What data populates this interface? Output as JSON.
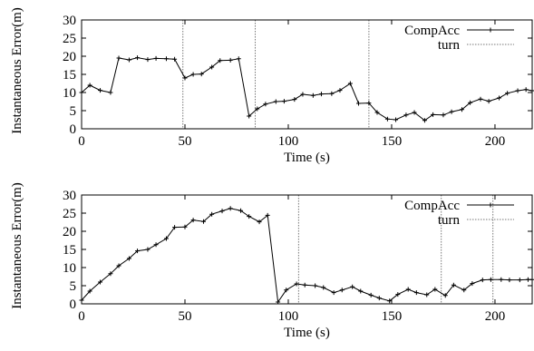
{
  "chart_data": [
    {
      "type": "line",
      "xlabel": "Time (s)",
      "ylabel": "Instantaneous Error(m)",
      "xlim": [
        0,
        218
      ],
      "ylim": [
        0,
        30
      ],
      "xticks": [
        0,
        50,
        100,
        150,
        200
      ],
      "yticks": [
        0,
        5,
        10,
        15,
        20,
        25,
        30
      ],
      "grid": false,
      "legend_position": "top-right",
      "legend": [
        "CompAcc",
        "turn"
      ],
      "series": [
        {
          "name": "CompAcc",
          "x": [
            0,
            4,
            9,
            14,
            18,
            23,
            27,
            32,
            36,
            41,
            45,
            50,
            54,
            58,
            63,
            67,
            72,
            76,
            81,
            85,
            89,
            94,
            98,
            103,
            107,
            112,
            116,
            121,
            125,
            130,
            134,
            139,
            143,
            148,
            152,
            157,
            161,
            166,
            170,
            175,
            179,
            184,
            188,
            193,
            197,
            202,
            206,
            211,
            215,
            218
          ],
          "y": [
            10,
            12,
            10.6,
            10,
            19.5,
            19,
            19.6,
            19.1,
            19.4,
            19.3,
            19.2,
            14,
            15,
            15.1,
            17,
            18.8,
            18.9,
            19.3,
            3.5,
            5.5,
            6.8,
            7.5,
            7.6,
            8.1,
            9.5,
            9.2,
            9.6,
            9.7,
            10.6,
            12.5,
            7,
            7.1,
            4.5,
            2.7,
            2.5,
            3.8,
            4.5,
            2.3,
            3.9,
            3.8,
            4.7,
            5.3,
            7.2,
            8.2,
            7.6,
            8.5,
            9.8,
            10.5,
            10.8,
            10.5
          ]
        },
        {
          "name": "turn",
          "style": "dotted-vertical",
          "x": [
            49,
            84,
            139
          ]
        }
      ]
    },
    {
      "type": "line",
      "xlabel": "Time (s)",
      "ylabel": "Instantaneous Error(m)",
      "xlim": [
        0,
        218
      ],
      "ylim": [
        0,
        30
      ],
      "xticks": [
        0,
        50,
        100,
        150,
        200
      ],
      "yticks": [
        0,
        5,
        10,
        15,
        20,
        25,
        30
      ],
      "grid": false,
      "legend_position": "top-right",
      "legend": [
        "CompAcc",
        "turn"
      ],
      "series": [
        {
          "name": "CompAcc",
          "x": [
            0,
            4,
            9,
            14,
            18,
            23,
            27,
            32,
            36,
            41,
            45,
            50,
            54,
            59,
            63,
            68,
            72,
            77,
            81,
            86,
            90,
            95,
            99,
            104,
            108,
            113,
            117,
            122,
            126,
            131,
            135,
            140,
            144,
            149,
            153,
            158,
            162,
            167,
            171,
            176,
            180,
            185,
            189,
            194,
            198,
            203,
            207,
            212,
            216,
            218
          ],
          "y": [
            1,
            3.5,
            6,
            8.3,
            10.5,
            12.5,
            14.6,
            15,
            16.3,
            18,
            21.1,
            21.2,
            23.1,
            22.7,
            24.7,
            25.6,
            26.3,
            25.7,
            24.1,
            22.6,
            24.4,
            0.5,
            3.8,
            5.5,
            5.2,
            5,
            4.5,
            3.1,
            3.8,
            4.7,
            3.5,
            2.4,
            1.6,
            0.8,
            2.6,
            4,
            3.1,
            2.5,
            4,
            2.3,
            5.2,
            3.8,
            5.6,
            6.6,
            6.7,
            6.7,
            6.6,
            6.6,
            6.7,
            6.7
          ]
        },
        {
          "name": "turn",
          "style": "dotted-vertical",
          "x": [
            105,
            174,
            199
          ]
        }
      ]
    }
  ]
}
